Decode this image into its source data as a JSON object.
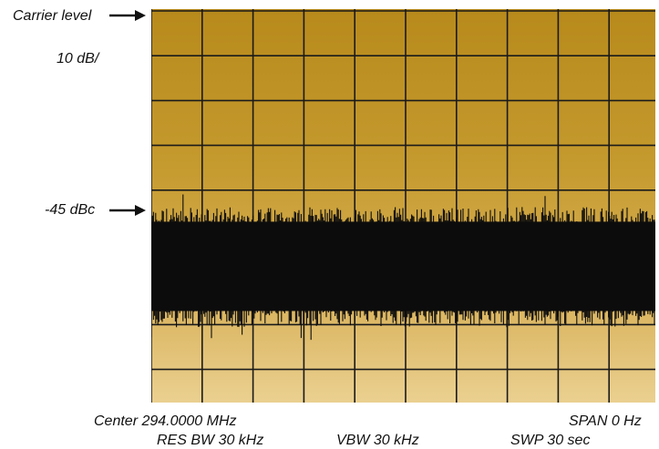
{
  "labels": {
    "carrier_level": "Carrier level",
    "scale": "10 dB/",
    "noise_level": "-45 dBc",
    "center": "Center 294.0000 MHz",
    "span": "SPAN 0 Hz",
    "res_bw": "RES BW 30 kHz",
    "vbw": "VBW 30 kHz",
    "swp": "SWP 30 sec"
  },
  "colors": {
    "trace": "#0d0d0d",
    "grid": "#1a1a1a",
    "screen_top": "#b88a1c",
    "screen_bottom": "#ead090"
  },
  "chart_data": {
    "type": "line",
    "title": "",
    "xlabel": "",
    "ylabel": "",
    "grid": true,
    "x_divisions": 10,
    "y_divisions": 8,
    "db_per_division": 10,
    "ylim_dbc": [
      -80,
      0
    ],
    "reference_level": "Carrier level",
    "series": [
      {
        "values_description": "zero-span noise trace",
        "mean_dbc": -57,
        "upper_envelope_dbc": -45,
        "lower_envelope_dbc": -69,
        "peak_dbc": -40
      }
    ]
  }
}
